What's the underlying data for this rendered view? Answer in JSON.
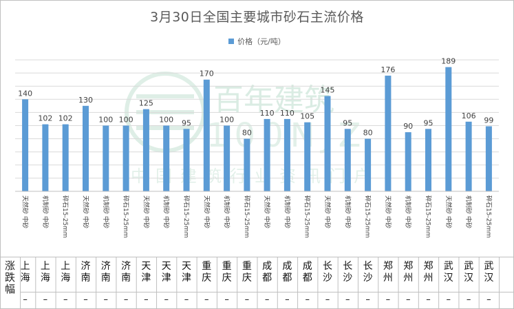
{
  "chart_data": {
    "type": "bar",
    "title": "3月30日全国主要城市砂石主流价格",
    "series": [
      {
        "name": "价格（元/吨）",
        "color": "#5b9bd5",
        "values": [
          140,
          102,
          102,
          130,
          100,
          100,
          125,
          100,
          95,
          170,
          100,
          80,
          110,
          110,
          105,
          145,
          95,
          80,
          176,
          90,
          95,
          189,
          106,
          99
        ]
      }
    ],
    "categories": [
      "天然砂 中砂",
      "机制砂 中砂",
      "碎石15-25mm",
      "天然砂 中砂",
      "机制砂 中砂",
      "碎石15-25mm",
      "天然砂 中砂",
      "机制砂 中砂",
      "碎石15-25mm",
      "天然砂 中砂",
      "机制砂 中砂",
      "碎石15-25mm",
      "天然砂 中砂",
      "机制砂 中砂",
      "碎石15-25mm",
      "天然砂 中砂",
      "机制砂 中砂",
      "碎石15-25mm",
      "天然砂 中砂",
      "机制砂 中砂",
      "碎石15-25mm",
      "天然砂 中砂",
      "机制砂 中砂",
      "碎石15-25mm"
    ],
    "ylim": [
      0,
      200
    ],
    "grid": true,
    "legend_position": "top",
    "xlabel": "",
    "ylabel": ""
  },
  "table": {
    "header": "涨跌幅",
    "cities": [
      "上海",
      "上海",
      "上海",
      "济南",
      "济南",
      "济南",
      "天津",
      "天津",
      "天津",
      "重庆",
      "重庆",
      "重庆",
      "成都",
      "成都",
      "成都",
      "长沙",
      "长沙",
      "长沙",
      "郑州",
      "郑州",
      "郑州",
      "武汉",
      "武汉",
      "武汉"
    ],
    "changes": [
      "–",
      "–",
      "–",
      "–",
      "–",
      "–",
      "–",
      "–",
      "–",
      "–",
      "–",
      "–",
      "–",
      "–",
      "–",
      "–",
      "–",
      "–",
      "–",
      "–",
      "–",
      "–",
      "–",
      "–"
    ]
  },
  "watermark": {
    "brand_cn": "百年建筑",
    "brand_en": "100NJZ",
    "slogan": "中国建筑行业资讯门户"
  }
}
